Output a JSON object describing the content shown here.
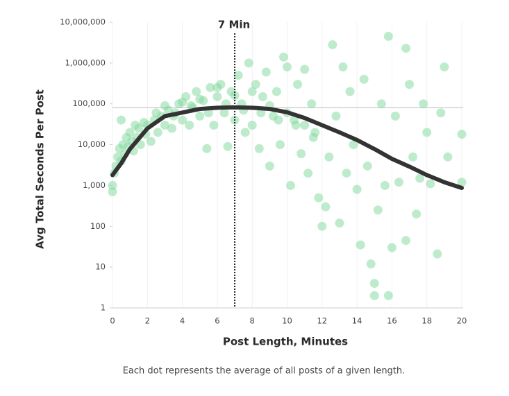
{
  "chart_data": {
    "type": "scatter",
    "annotation": "7 Min",
    "vline": 7,
    "hline": 80000,
    "xlabel": "Post Length, Minutes",
    "ylabel": "Avg Total Seconds Per Post",
    "caption": "Each dot represents the average of all posts of a given length.",
    "ylog": true,
    "grid": true,
    "xlim": [
      0,
      20
    ],
    "xticks": [
      0,
      2,
      4,
      6,
      8,
      10,
      12,
      14,
      16,
      18,
      20
    ],
    "ylim": [
      1,
      10000000
    ],
    "yticks": [
      1,
      10,
      100,
      {
        "value": 1000,
        "label": "1,000"
      },
      {
        "value": 10000,
        "label": "10,000"
      },
      {
        "value": 100000,
        "label": "100,000"
      },
      {
        "value": 1000000,
        "label": "1,000,000"
      },
      {
        "value": 10000000,
        "label": "10,000,000"
      }
    ],
    "point_color": "#7fd89c",
    "curve_color": "#333333",
    "points": {
      "x": [
        0,
        0,
        0.1,
        0.2,
        0.3,
        0.4,
        0.5,
        0.6,
        0.7,
        0.8,
        0.9,
        1,
        1.1,
        1.2,
        1.3,
        1.4,
        1.5,
        1.6,
        1.8,
        1.9,
        0.5,
        2,
        2.2,
        2.4,
        2.6,
        2.8,
        3,
        3.2,
        3.4,
        3.6,
        3.8,
        4,
        4.2,
        4.4,
        4.6,
        4.8,
        5,
        5.2,
        5.4,
        5.6,
        5.8,
        6,
        6.2,
        6.4,
        6.6,
        6.8,
        7,
        7.2,
        7.4,
        7.6,
        7.8,
        8,
        8.2,
        8.4,
        8.6,
        8.8,
        9,
        9.2,
        9.4,
        9.6,
        9.8,
        10,
        10.2,
        10.4,
        10.6,
        10.8,
        11,
        11.2,
        11.4,
        11.6,
        11.8,
        12,
        12.2,
        12.4,
        12.6,
        12.8,
        13,
        13.2,
        13.4,
        13.6,
        13.8,
        14,
        14.2,
        14.4,
        14.6,
        14.8,
        15,
        15,
        15.2,
        15.4,
        15.6,
        15.8,
        15.8,
        16,
        16.2,
        16.4,
        16.8,
        16.8,
        17,
        17.2,
        17.4,
        17.6,
        17.8,
        18,
        18.2,
        18.6,
        18.8,
        19,
        19.2,
        20,
        20,
        3,
        4,
        5,
        6,
        7,
        8,
        9,
        10,
        11,
        2.5,
        3.5,
        4.5,
        5.5,
        6.5,
        7.5,
        8.5,
        9.5,
        10.5,
        11.5
      ],
      "y": [
        700,
        1000,
        2000,
        3000,
        5000,
        8000,
        4000,
        10000,
        6000,
        15000,
        9000,
        20000,
        12000,
        7000,
        30000,
        15000,
        25000,
        10000,
        35000,
        18000,
        40000,
        30000,
        12000,
        40000,
        20000,
        50000,
        30000,
        70000,
        25000,
        60000,
        100000,
        40000,
        150000,
        30000,
        80000,
        200000,
        50000,
        120000,
        8000,
        250000,
        30000,
        150000,
        300000,
        60000,
        9000,
        200000,
        40000,
        500000,
        100000,
        20000,
        1000000,
        30000,
        300000,
        8000,
        150000,
        600000,
        3000,
        50000,
        200000,
        10000,
        1400000,
        800000,
        1000,
        40000,
        300000,
        6000,
        700000,
        2000,
        100000,
        20000,
        500,
        100,
        300,
        5000,
        2800000,
        50000,
        120,
        800000,
        2000,
        200000,
        10000,
        800,
        35,
        400000,
        3000,
        12,
        4,
        2,
        250,
        100000,
        1000,
        4500000,
        2,
        30,
        50000,
        1200,
        2300000,
        45,
        300000,
        5000,
        200,
        1500,
        100000,
        20000,
        1100,
        21,
        60000,
        800000,
        5000,
        1200,
        18000,
        90000,
        110000,
        130000,
        250000,
        160000,
        200000,
        90000,
        60000,
        30000,
        60000,
        50000,
        90000,
        60000,
        100000,
        70000,
        60000,
        40000,
        30000,
        15000
      ]
    },
    "curve": {
      "x": [
        0,
        0.5,
        1,
        2,
        3,
        4,
        5,
        6,
        7,
        8,
        9,
        10,
        11,
        12,
        13,
        14,
        15,
        16,
        17,
        18,
        19,
        20
      ],
      "y": [
        1800,
        3500,
        7800,
        25000,
        50000,
        61000,
        75000,
        80000,
        82000,
        80000,
        75000,
        62000,
        45000,
        30000,
        20000,
        13000,
        7800,
        4500,
        2900,
        1800,
        1200,
        870
      ]
    }
  }
}
